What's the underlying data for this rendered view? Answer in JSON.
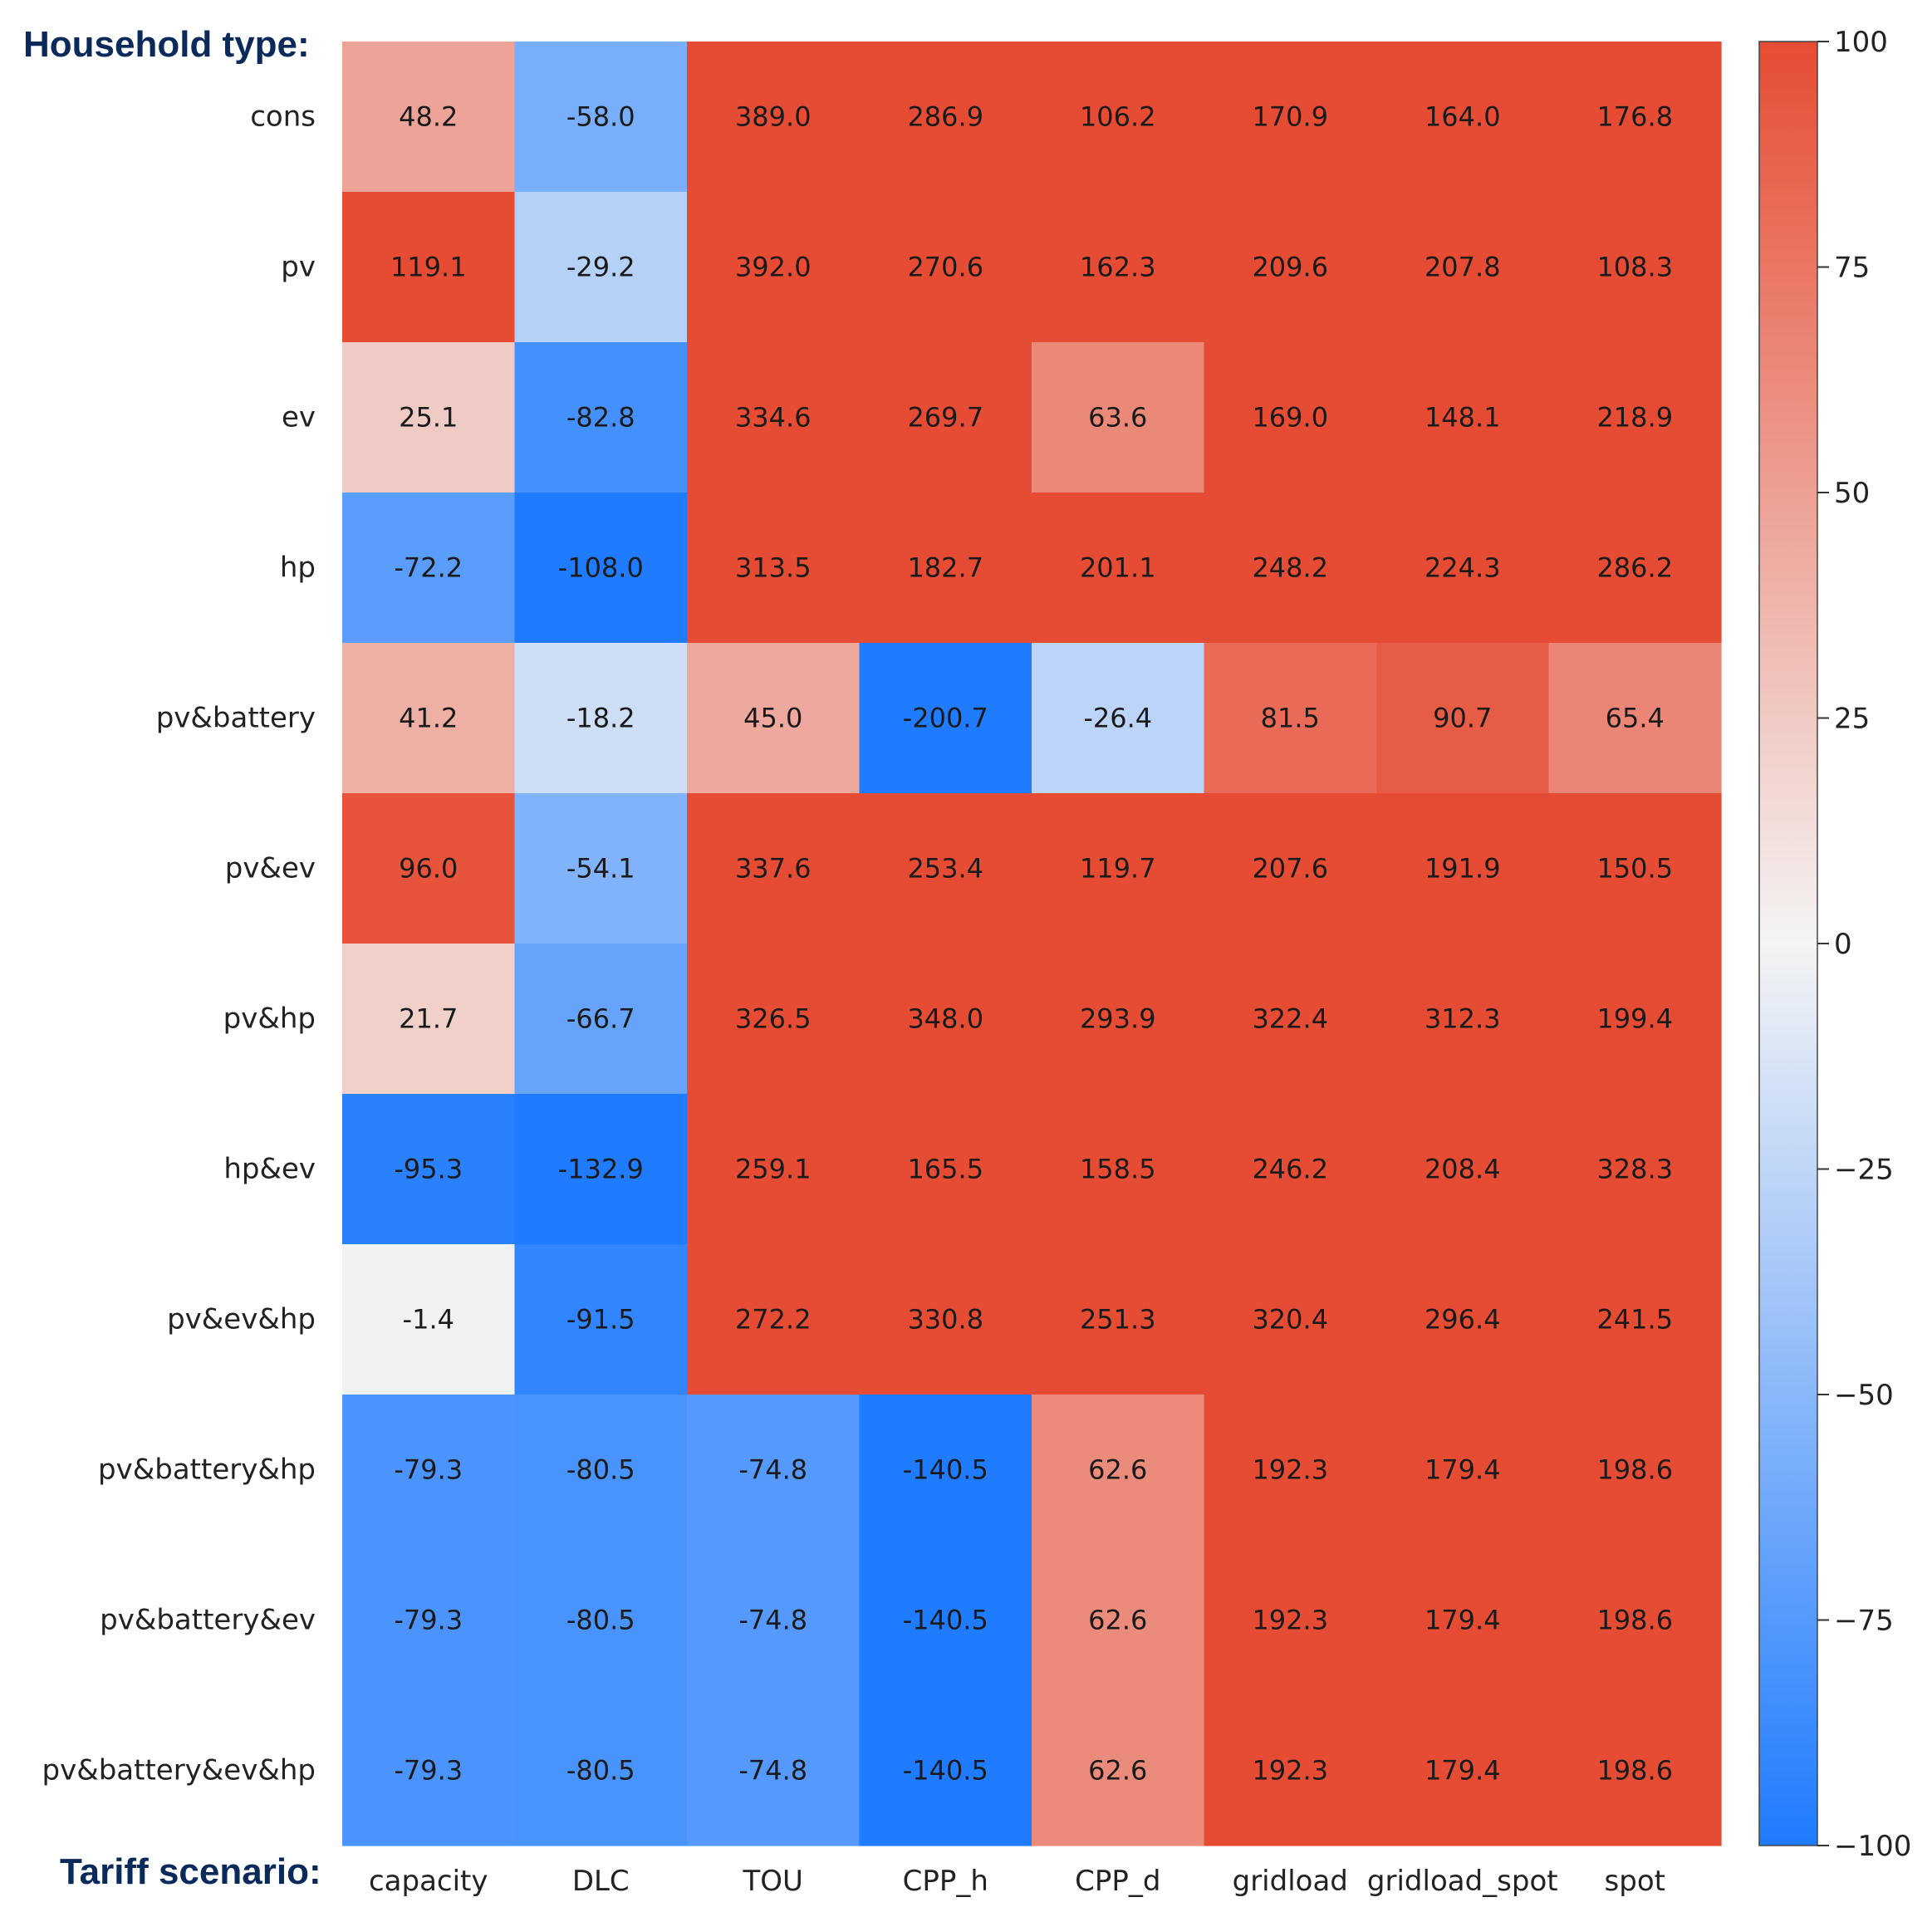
{
  "chart_data": {
    "type": "heatmap",
    "row_axis_title": "Household type:",
    "col_axis_title": "Tariff scenario:",
    "rows": [
      "cons",
      "pv",
      "ev",
      "hp",
      "pv&battery",
      "pv&ev",
      "pv&hp",
      "hp&ev",
      "pv&ev&hp",
      "pv&battery&hp",
      "pv&battery&ev",
      "pv&battery&ev&hp"
    ],
    "columns": [
      "capacity",
      "DLC",
      "TOU",
      "CPP_h",
      "CPP_d",
      "gridload",
      "gridload_spot",
      "spot"
    ],
    "values": [
      [
        "48.2",
        "-58.0",
        "389.0",
        "286.9",
        "106.2",
        "170.9",
        "164.0",
        "176.8"
      ],
      [
        "119.1",
        "-29.2",
        "392.0",
        "270.6",
        "162.3",
        "209.6",
        "207.8",
        "108.3"
      ],
      [
        "25.1",
        "-82.8",
        "334.6",
        "269.7",
        "63.6",
        "169.0",
        "148.1",
        "218.9"
      ],
      [
        "-72.2",
        "-108.0",
        "313.5",
        "182.7",
        "201.1",
        "248.2",
        "224.3",
        "286.2"
      ],
      [
        "41.2",
        "-18.2",
        "45.0",
        "-200.7",
        "-26.4",
        "81.5",
        "90.7",
        "65.4"
      ],
      [
        "96.0",
        "-54.1",
        "337.6",
        "253.4",
        "119.7",
        "207.6",
        "191.9",
        "150.5"
      ],
      [
        "21.7",
        "-66.7",
        "326.5",
        "348.0",
        "293.9",
        "322.4",
        "312.3",
        "199.4"
      ],
      [
        "-95.3",
        "-132.9",
        "259.1",
        "165.5",
        "158.5",
        "246.2",
        "208.4",
        "328.3"
      ],
      [
        "-1.4",
        "-91.5",
        "272.2",
        "330.8",
        "251.3",
        "320.4",
        "296.4",
        "241.5"
      ],
      [
        "-79.3",
        "-80.5",
        "-74.8",
        "-140.5",
        "62.6",
        "192.3",
        "179.4",
        "198.6"
      ],
      [
        "-79.3",
        "-80.5",
        "-74.8",
        "-140.5",
        "62.6",
        "192.3",
        "179.4",
        "198.6"
      ],
      [
        "-79.3",
        "-80.5",
        "-74.8",
        "-140.5",
        "62.6",
        "192.3",
        "179.4",
        "198.6"
      ]
    ],
    "colorbar": {
      "min": -100,
      "max": 100,
      "ticks": [
        100,
        75,
        50,
        25,
        0,
        -25,
        -50,
        -75,
        -100
      ],
      "tick_labels": [
        "100",
        "75",
        "50",
        "25",
        "0",
        "−25",
        "−50",
        "−75",
        "−100"
      ],
      "colormap": "coolwarm-like",
      "low_color": "#1f7bff",
      "mid_color": "#f4f4f4",
      "high_color": "#e64c33"
    }
  }
}
